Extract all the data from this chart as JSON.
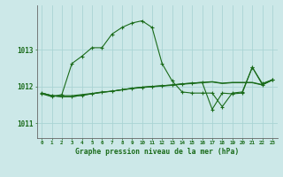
{
  "xlabel": "Graphe pression niveau de la mer (hPa)",
  "background_color": "#cce8e8",
  "grid_color": "#aad4d4",
  "line_color": "#1a6b1a",
  "x_values": [
    0,
    1,
    2,
    3,
    4,
    5,
    6,
    7,
    8,
    9,
    10,
    11,
    12,
    13,
    14,
    15,
    16,
    17,
    18,
    19,
    20,
    21,
    22,
    23
  ],
  "series_main": [
    1011.8,
    1011.72,
    1011.78,
    1012.62,
    1012.82,
    1013.05,
    1013.05,
    1013.42,
    1013.6,
    1013.72,
    1013.78,
    1013.6,
    1012.62,
    1012.15,
    1011.85,
    1011.82,
    1011.82,
    1011.82,
    1011.45,
    1011.82,
    1011.85,
    1012.52,
    1012.08,
    1012.18
  ],
  "series_flat1": [
    1011.82,
    1011.75,
    1011.72,
    1011.72,
    1011.76,
    1011.8,
    1011.84,
    1011.87,
    1011.91,
    1011.95,
    1011.98,
    1012.0,
    1012.02,
    1012.04,
    1012.07,
    1012.09,
    1012.11,
    1011.38,
    1011.82,
    1011.8,
    1011.82,
    1012.52,
    1012.05,
    1012.18
  ],
  "series_flat2": [
    1011.82,
    1011.75,
    1011.72,
    1011.72,
    1011.76,
    1011.8,
    1011.84,
    1011.87,
    1011.91,
    1011.95,
    1011.98,
    1012.0,
    1012.02,
    1012.04,
    1012.07,
    1012.09,
    1012.11,
    1012.13,
    1012.09,
    1012.11,
    1012.11,
    1012.11,
    1012.05,
    1012.18
  ],
  "series_flat3": [
    1011.82,
    1011.75,
    1011.75,
    1011.75,
    1011.78,
    1011.81,
    1011.85,
    1011.87,
    1011.91,
    1011.94,
    1011.97,
    1011.99,
    1012.01,
    1012.03,
    1012.06,
    1012.08,
    1012.1,
    1012.12,
    1012.08,
    1012.1,
    1012.1,
    1012.1,
    1012.04,
    1012.17
  ],
  "yticks": [
    1011,
    1012,
    1013
  ],
  "ylim": [
    1010.6,
    1014.2
  ],
  "xlim": [
    -0.5,
    23.5
  ]
}
